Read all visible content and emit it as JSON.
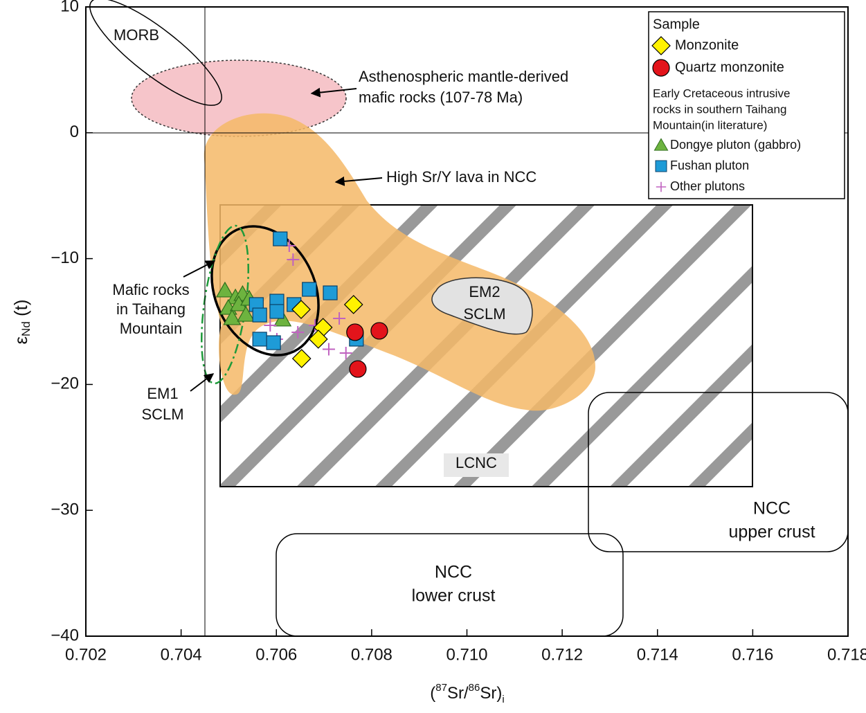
{
  "chart_data": {
    "type": "scatter",
    "x_label_parts": [
      "(",
      "87",
      "Sr/",
      "86",
      "Sr)",
      "i"
    ],
    "y_label_parts": [
      "ε",
      "Nd",
      " (t)"
    ],
    "xlim": [
      0.702,
      0.718
    ],
    "ylim": [
      -40,
      10
    ],
    "xticks": [
      0.702,
      0.704,
      0.706,
      0.708,
      {
        "value": 0.71,
        "label": "0.710"
      },
      0.712,
      0.714,
      0.716,
      0.718
    ],
    "yticks": [
      {
        "value": -40,
        "label": "−40"
      },
      {
        "value": -30,
        "label": "−30"
      },
      {
        "value": -20,
        "label": "−20"
      },
      {
        "value": -10,
        "label": "−10"
      },
      0,
      10
    ],
    "legend_title": "Sample",
    "legend_subtitle": [
      "Early Cretaceous intrusive",
      "rocks in southern Taihang",
      "Mountain(in literature)"
    ],
    "series": [
      {
        "name": "Monzonite",
        "color": "#fff200",
        "marker": "diamond",
        "x": [
          0.70762,
          0.70652,
          0.70698,
          0.70688,
          0.70653
        ],
        "values": [
          -13.65,
          -14.04,
          -15.47,
          -16.4,
          -17.94
        ]
      },
      {
        "name": "Quartz monzonite",
        "color": "#e3141b",
        "marker": "circle",
        "x": [
          0.70765,
          0.70816,
          0.70771
        ],
        "values": [
          -15.85,
          -15.74,
          -18.77
        ]
      },
      {
        "name": "Dongye pluton (gabbro)",
        "color": "#6db33f",
        "marker": "triangle",
        "x": [
          0.70492,
          0.70514,
          0.70529,
          0.70499,
          0.70521,
          0.70543,
          0.70507,
          0.70536,
          0.70613
        ],
        "values": [
          -12.55,
          -13.1,
          -12.83,
          -13.93,
          -13.65,
          -13.21,
          -14.75,
          -14.48,
          -14.86
        ]
      },
      {
        "name": "Fushan pluton",
        "color": "#1e9bd7",
        "marker": "square",
        "x": [
          0.70608,
          0.70669,
          0.70713,
          0.70558,
          0.70601,
          0.70565,
          0.70601,
          0.70637,
          0.70565,
          0.70594,
          0.70768
        ],
        "values": [
          -8.43,
          -12.44,
          -12.72,
          -13.65,
          -13.38,
          -14.48,
          -14.2,
          -13.65,
          -16.4,
          -16.68,
          -16.4
        ]
      },
      {
        "name": "Other plutons",
        "color": "#c062c0",
        "marker": "plus",
        "x": [
          0.70627,
          0.70635,
          0.70587,
          0.70645,
          0.70681,
          0.7071,
          0.70746,
          0.70732,
          0.70601
        ],
        "values": [
          -8.98,
          -10.08,
          -15.3,
          -15.85,
          -15.3,
          -17.2,
          -17.5,
          -14.75,
          -16.4
        ]
      }
    ],
    "annotations": [
      {
        "lines": [
          "MORB"
        ]
      },
      {
        "lines": [
          "Asthenospheric mantle-derived",
          "mafic rocks (107-78 Ma)"
        ]
      },
      {
        "lines": [
          "High Sr/Y lava in NCC"
        ]
      },
      {
        "lines": [
          "Mafic rocks",
          "in Taihang",
          "Mountain"
        ]
      },
      {
        "lines": [
          "EM2",
          "SCLM"
        ]
      },
      {
        "lines": [
          "EM1",
          "SCLM"
        ]
      },
      {
        "lines": [
          "LCNC"
        ]
      },
      {
        "lines": [
          "NCC",
          "upper crust"
        ]
      },
      {
        "lines": [
          "NCC",
          "lower crust"
        ]
      }
    ]
  }
}
